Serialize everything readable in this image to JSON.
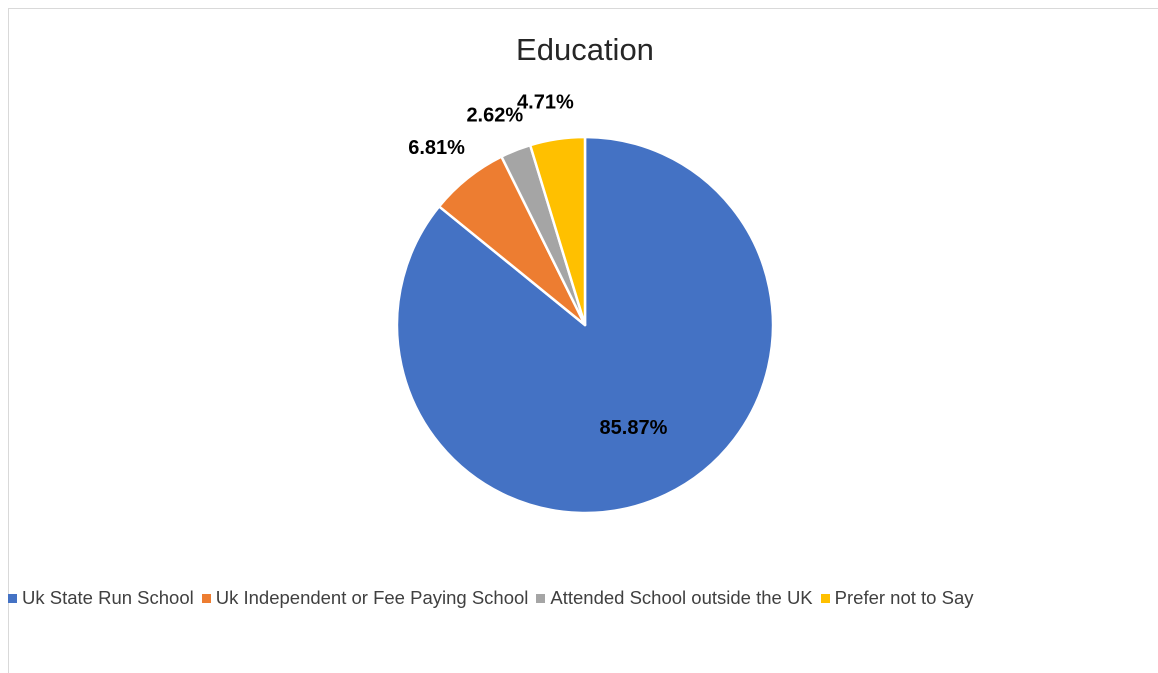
{
  "chart_data": {
    "type": "pie",
    "title": "Education",
    "categories": [
      "Uk State Run School",
      "Uk Independent or Fee Paying School",
      "Attended School outside the UK",
      "Prefer not to Say"
    ],
    "values": [
      85.87,
      6.81,
      2.62,
      4.71
    ],
    "value_labels": [
      "85.87%",
      "6.81%",
      "2.62%",
      "4.71%"
    ],
    "colors": [
      "#4472c4",
      "#ed7d31",
      "#a5a5a5",
      "#ffc000"
    ],
    "legend_position": "bottom"
  }
}
